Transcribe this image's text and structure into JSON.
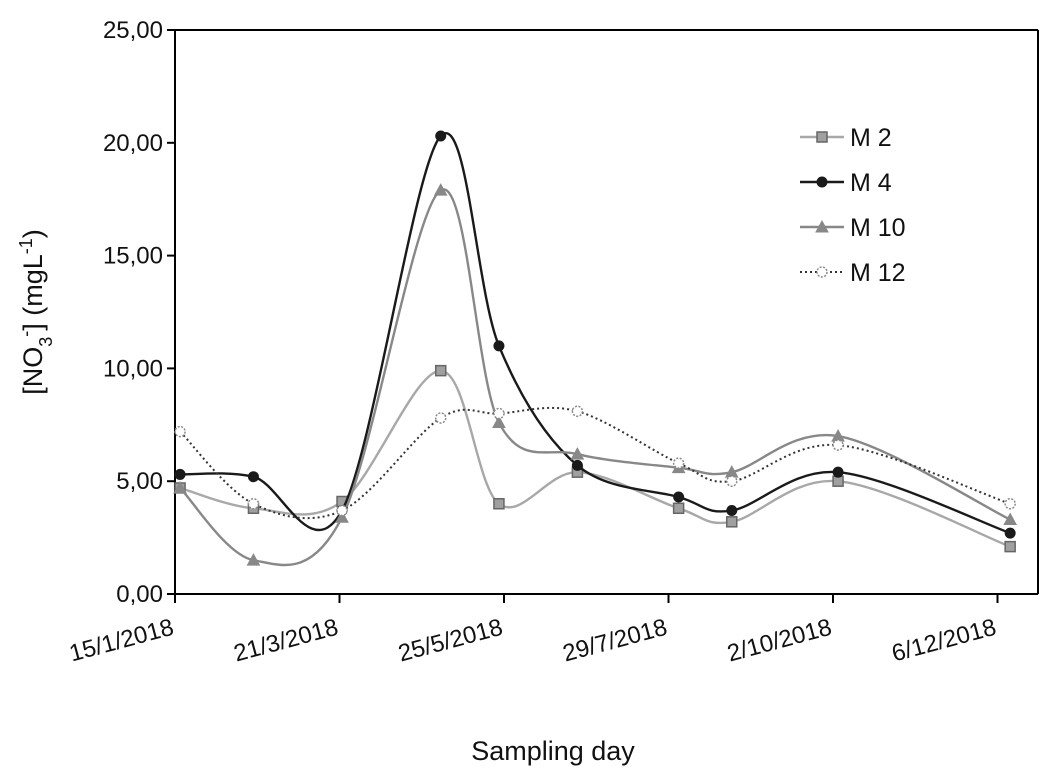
{
  "chart_data": {
    "type": "line",
    "title": "",
    "xlabel": "Sampling day",
    "ylabel": {
      "prefix": "[NO",
      "sub": "3",
      "sup": "-",
      "mid": "] (mgL",
      "sup2": "-1",
      "end": ")"
    },
    "x_tick_labels": [
      "15/1/2018",
      "21/3/2018",
      "25/5/2018",
      "29/7/2018",
      "2/10/2018",
      "6/12/2018"
    ],
    "x_tick_dates": [
      "2018-01-15",
      "2018-03-21",
      "2018-05-25",
      "2018-07-29",
      "2018-10-02",
      "2018-12-06"
    ],
    "y_tick_labels": [
      "0,00",
      "5,00",
      "10,00",
      "15,00",
      "20,00",
      "25,00"
    ],
    "ylim": [
      0,
      25
    ],
    "xlim": [
      "2018-01-15",
      "2018-12-22"
    ],
    "grid": false,
    "legend_position": "top-right",
    "series": [
      {
        "name": "M 2",
        "color": "#a8a8a8",
        "marker": "square",
        "line_style": "solid",
        "points": [
          [
            "2018-01-17",
            4.7
          ],
          [
            "2018-02-15",
            3.8
          ],
          [
            "2018-03-22",
            4.1
          ],
          [
            "2018-04-30",
            9.9
          ],
          [
            "2018-05-23",
            4.0
          ],
          [
            "2018-06-23",
            5.4
          ],
          [
            "2018-08-02",
            3.8
          ],
          [
            "2018-08-23",
            3.2
          ],
          [
            "2018-10-04",
            5.0
          ],
          [
            "2018-12-11",
            2.1
          ]
        ]
      },
      {
        "name": "M 4",
        "color": "#1a1a1a",
        "marker": "circle",
        "line_style": "solid",
        "points": [
          [
            "2018-01-17",
            5.3
          ],
          [
            "2018-02-15",
            5.2
          ],
          [
            "2018-03-22",
            3.7
          ],
          [
            "2018-04-30",
            20.3
          ],
          [
            "2018-05-23",
            11.0
          ],
          [
            "2018-06-23",
            5.7
          ],
          [
            "2018-08-02",
            4.3
          ],
          [
            "2018-08-23",
            3.7
          ],
          [
            "2018-10-04",
            5.4
          ],
          [
            "2018-12-11",
            2.7
          ]
        ]
      },
      {
        "name": "M 10",
        "color": "#888888",
        "marker": "triangle",
        "line_style": "solid",
        "points": [
          [
            "2018-01-17",
            4.7
          ],
          [
            "2018-02-15",
            1.5
          ],
          [
            "2018-03-22",
            3.4
          ],
          [
            "2018-04-30",
            17.9
          ],
          [
            "2018-05-23",
            7.6
          ],
          [
            "2018-06-23",
            6.2
          ],
          [
            "2018-08-02",
            5.6
          ],
          [
            "2018-08-23",
            5.4
          ],
          [
            "2018-10-04",
            7.0
          ],
          [
            "2018-12-11",
            3.3
          ]
        ]
      },
      {
        "name": "M 12",
        "color": "#333333",
        "marker": "circle-open",
        "line_style": "dotted",
        "points": [
          [
            "2018-01-17",
            7.2
          ],
          [
            "2018-02-15",
            4.0
          ],
          [
            "2018-03-22",
            3.7
          ],
          [
            "2018-04-30",
            7.8
          ],
          [
            "2018-05-23",
            8.0
          ],
          [
            "2018-06-23",
            8.1
          ],
          [
            "2018-08-02",
            5.8
          ],
          [
            "2018-08-23",
            5.0
          ],
          [
            "2018-10-04",
            6.6
          ],
          [
            "2018-12-11",
            4.0
          ]
        ]
      }
    ]
  }
}
